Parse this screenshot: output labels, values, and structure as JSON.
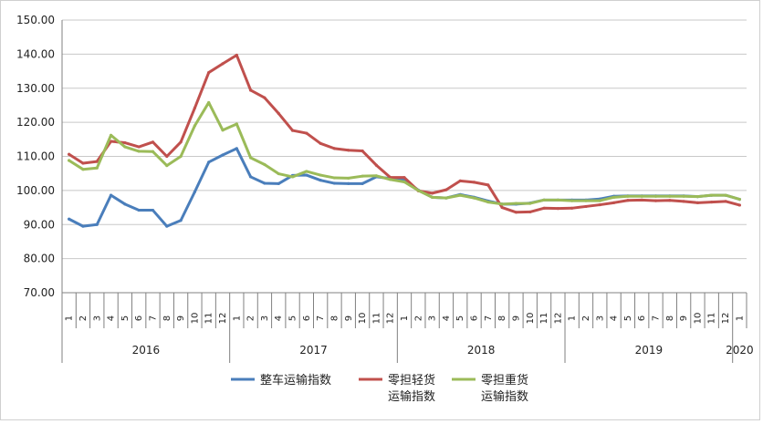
{
  "chart_data": {
    "type": "line",
    "title": "",
    "xlabel": "",
    "ylabel": "",
    "ylim": [
      70,
      150
    ],
    "ytick_labels": [
      "70.00",
      "80.00",
      "90.00",
      "100.00",
      "110.00",
      "120.00",
      "130.00",
      "140.00",
      "150.00"
    ],
    "grid": true,
    "legend_position": "bottom",
    "years": [
      {
        "label": "2016",
        "months": 12
      },
      {
        "label": "2017",
        "months": 12
      },
      {
        "label": "2018",
        "months": 12
      },
      {
        "label": "2019",
        "months": 12
      },
      {
        "label": "2020",
        "months": 1
      }
    ],
    "month_labels": [
      "1",
      "2",
      "3",
      "4",
      "5",
      "6",
      "7",
      "8",
      "9",
      "10",
      "11",
      "12",
      "1",
      "2",
      "3",
      "4",
      "5",
      "6",
      "7",
      "8",
      "9",
      "10",
      "11",
      "12",
      "1",
      "2",
      "3",
      "4",
      "5",
      "6",
      "7",
      "8",
      "9",
      "10",
      "11",
      "12",
      "1",
      "2",
      "3",
      "4",
      "5",
      "6",
      "7",
      "8",
      "9",
      "10",
      "11",
      "12",
      "1"
    ],
    "series": [
      {
        "name": "整车运输指数",
        "color": "#4a7ebb",
        "values": [
          91.6,
          89.5,
          90.0,
          98.6,
          96.0,
          94.2,
          94.2,
          89.5,
          91.2,
          99.6,
          108.3,
          110.4,
          112.3,
          104.0,
          102.1,
          102.0,
          104.4,
          104.5,
          103.0,
          102.1,
          102.0,
          102.0,
          104.0,
          103.5,
          103.0,
          100.1,
          98.0,
          97.8,
          98.8,
          98.0,
          96.9,
          96.0,
          96.0,
          96.3,
          97.2,
          97.2,
          97.2,
          97.2,
          97.5,
          98.3,
          98.4,
          98.4,
          98.4,
          98.4,
          98.4,
          98.2,
          98.6,
          98.6,
          97.4
        ]
      },
      {
        "name": "零担轻货运输指数",
        "color": "#c0504d",
        "values": [
          110.6,
          108.0,
          108.5,
          114.4,
          114.0,
          112.8,
          114.2,
          110.0,
          114.2,
          124.2,
          134.6,
          137.2,
          139.7,
          129.4,
          127.2,
          122.6,
          117.6,
          116.8,
          113.8,
          112.3,
          111.8,
          111.6,
          107.4,
          103.8,
          103.8,
          99.9,
          99.2,
          100.2,
          102.8,
          102.4,
          101.6,
          95.0,
          93.6,
          93.7,
          94.8,
          94.7,
          94.8,
          95.3,
          95.8,
          96.4,
          97.1,
          97.2,
          97.0,
          97.1,
          96.8,
          96.4,
          96.6,
          96.8,
          95.7
        ]
      },
      {
        "name": "零担重货运输指数",
        "color": "#9bbb59",
        "values": [
          108.8,
          106.2,
          106.6,
          116.2,
          112.8,
          111.5,
          111.4,
          107.3,
          110.0,
          119.0,
          125.8,
          117.7,
          119.5,
          109.6,
          107.6,
          104.9,
          104.0,
          105.6,
          104.5,
          103.7,
          103.6,
          104.2,
          104.3,
          103.2,
          102.5,
          100.0,
          98.0,
          97.8,
          98.6,
          97.8,
          96.6,
          96.0,
          96.2,
          96.2,
          97.2,
          97.2,
          97.0,
          97.0,
          97.0,
          98.0,
          98.3,
          98.3,
          98.3,
          98.3,
          98.3,
          98.2,
          98.6,
          98.6,
          97.4
        ]
      }
    ],
    "legend_lines": [
      [
        "整车运输指数"
      ],
      [
        "零担轻货",
        "运输指数"
      ],
      [
        "零担重货",
        "运输指数"
      ]
    ]
  }
}
